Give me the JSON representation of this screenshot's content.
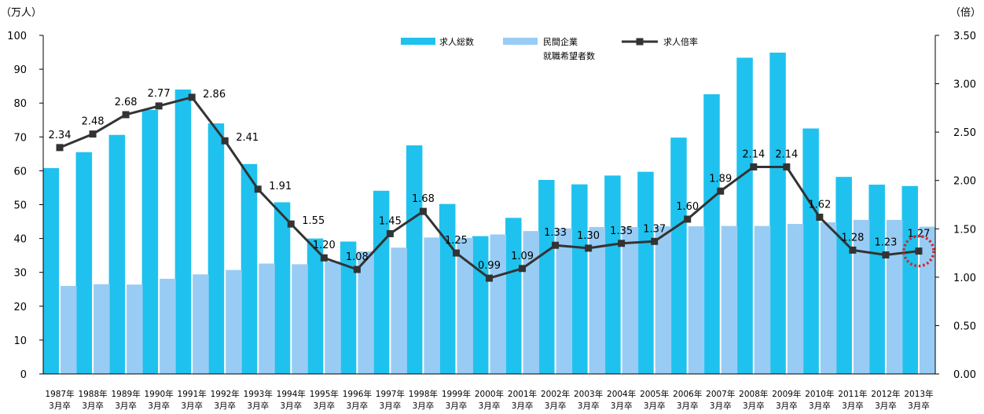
{
  "chart_data": {
    "type": "bar",
    "categories": [
      [
        "1987年",
        "3月卒"
      ],
      [
        "1988年",
        "3月卒"
      ],
      [
        "1989年",
        "3月卒"
      ],
      [
        "1990年",
        "3月卒"
      ],
      [
        "1991年",
        "3月卒"
      ],
      [
        "1992年",
        "3月卒"
      ],
      [
        "1993年",
        "3月卒"
      ],
      [
        "1994年",
        "3月卒"
      ],
      [
        "1995年",
        "3月卒"
      ],
      [
        "1996年",
        "3月卒"
      ],
      [
        "1997年",
        "3月卒"
      ],
      [
        "1998年",
        "3月卒"
      ],
      [
        "1999年",
        "3月卒"
      ],
      [
        "2000年",
        "3月卒"
      ],
      [
        "2001年",
        "3月卒"
      ],
      [
        "2002年",
        "3月卒"
      ],
      [
        "2003年",
        "3月卒"
      ],
      [
        "2004年",
        "3月卒"
      ],
      [
        "2005年",
        "3月卒"
      ],
      [
        "2006年",
        "3月卒"
      ],
      [
        "2007年",
        "3月卒"
      ],
      [
        "2008年",
        "3月卒"
      ],
      [
        "2009年",
        "3月卒"
      ],
      [
        "2010年",
        "3月卒"
      ],
      [
        "2011年",
        "3月卒"
      ],
      [
        "2012年",
        "3月卒"
      ],
      [
        "2013年",
        "3月卒"
      ]
    ],
    "series": [
      {
        "name": "求人総数",
        "type": "bar",
        "axis": "left",
        "color": "#1FC2EE",
        "values": [
          60.8,
          65.5,
          70.6,
          78.0,
          84.0,
          74.0,
          62.0,
          50.7,
          40.0,
          39.1,
          54.1,
          67.5,
          50.2,
          40.7,
          46.1,
          57.3,
          56.0,
          58.6,
          59.7,
          69.8,
          82.6,
          93.4,
          94.9,
          72.5,
          58.2,
          55.9,
          55.5
        ]
      },
      {
        "name": [
          "民間企業",
          "就職希望者数"
        ],
        "type": "bar",
        "axis": "left",
        "color": "#99CCF4",
        "values": [
          26.0,
          26.5,
          26.4,
          28.1,
          29.4,
          30.7,
          32.6,
          32.4,
          33.3,
          36.2,
          37.3,
          40.3,
          40.2,
          41.2,
          42.2,
          43.0,
          43.4,
          43.4,
          43.6,
          43.6,
          43.7,
          43.7,
          44.3,
          44.8,
          45.5,
          45.5,
          43.5
        ]
      },
      {
        "name": "求人倍率",
        "type": "line",
        "axis": "right",
        "color": "#333333",
        "values": [
          2.34,
          2.48,
          2.68,
          2.77,
          2.86,
          2.41,
          1.91,
          1.55,
          1.2,
          1.08,
          1.45,
          1.68,
          1.25,
          0.99,
          1.09,
          1.33,
          1.3,
          1.35,
          1.37,
          1.6,
          1.89,
          2.14,
          2.14,
          1.62,
          1.28,
          1.23,
          1.27
        ],
        "labels": [
          "2.34",
          "2.48",
          "2.68",
          "2.77",
          "2.86",
          "2.41",
          "1.91",
          "1.55",
          "1.20",
          "1.08",
          "1.45",
          "1.68",
          "1.25",
          "0.99",
          "1.09",
          "1.33",
          "1.30",
          "1.35",
          "1.37",
          "1.60",
          "1.89",
          "2.14",
          "2.14",
          "1.62",
          "1.28",
          "1.23",
          "1.27"
        ]
      }
    ],
    "left_axis": {
      "unit": "（万人）",
      "range": [
        0,
        100
      ],
      "ticks": [
        0,
        10,
        20,
        30,
        40,
        50,
        60,
        70,
        80,
        90,
        100
      ],
      "tick_labels": [
        "0",
        "10",
        "20",
        "30",
        "40",
        "50",
        "60",
        "70",
        "80",
        "90",
        "100"
      ]
    },
    "right_axis": {
      "unit": "（倍）",
      "range": [
        0,
        3.5
      ],
      "ticks": [
        0,
        0.5,
        1,
        1.5,
        2,
        2.5,
        3,
        3.5
      ],
      "tick_labels": [
        "0.00",
        "0.50",
        "1.00",
        "1.50",
        "2.00",
        "2.50",
        "3.00",
        "3.50"
      ]
    },
    "grid": false,
    "legend_position": "top-center",
    "highlight": {
      "category_index": 26,
      "style": "red dotted circle",
      "color": "#E02020"
    }
  }
}
